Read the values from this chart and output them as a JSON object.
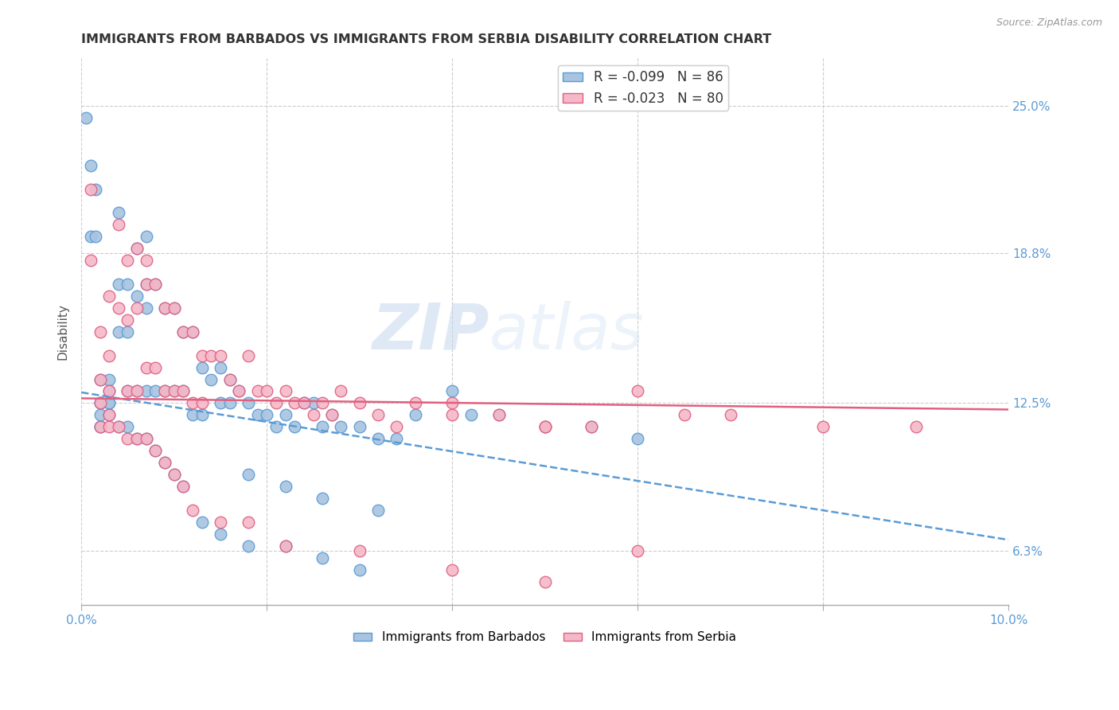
{
  "title": "IMMIGRANTS FROM BARBADOS VS IMMIGRANTS FROM SERBIA DISABILITY CORRELATION CHART",
  "source": "Source: ZipAtlas.com",
  "ylabel": "Disability",
  "xlim": [
    0.0,
    0.1
  ],
  "ylim": [
    0.04,
    0.27
  ],
  "xticks": [
    0.0,
    0.02,
    0.04,
    0.06,
    0.08,
    0.1
  ],
  "yticks": [
    0.063,
    0.125,
    0.188,
    0.25
  ],
  "yticklabels": [
    "6.3%",
    "12.5%",
    "18.8%",
    "25.0%"
  ],
  "watermark_zip": "ZIP",
  "watermark_atlas": "atlas",
  "barbados_color": "#a8c4e0",
  "barbados_edge": "#5b9bd5",
  "serbia_color": "#f4b8c8",
  "serbia_edge": "#e06080",
  "barbados_R": -0.099,
  "barbados_N": 86,
  "serbia_R": -0.023,
  "serbia_N": 80,
  "barbados_line_intercept": 0.1295,
  "barbados_line_slope": -0.62,
  "serbia_line_intercept": 0.127,
  "serbia_line_slope": -0.047,
  "background_color": "#ffffff",
  "grid_color": "#cccccc",
  "title_color": "#333333",
  "axis_color": "#5b9bd5",
  "barbados_x": [
    0.0005,
    0.001,
    0.001,
    0.0015,
    0.0015,
    0.002,
    0.002,
    0.002,
    0.002,
    0.002,
    0.003,
    0.003,
    0.003,
    0.003,
    0.004,
    0.004,
    0.004,
    0.005,
    0.005,
    0.005,
    0.006,
    0.006,
    0.006,
    0.007,
    0.007,
    0.007,
    0.007,
    0.008,
    0.008,
    0.009,
    0.009,
    0.01,
    0.01,
    0.011,
    0.011,
    0.012,
    0.012,
    0.013,
    0.013,
    0.014,
    0.015,
    0.015,
    0.016,
    0.016,
    0.017,
    0.018,
    0.019,
    0.02,
    0.021,
    0.022,
    0.023,
    0.024,
    0.025,
    0.026,
    0.027,
    0.028,
    0.03,
    0.032,
    0.034,
    0.036,
    0.04,
    0.042,
    0.045,
    0.05,
    0.055,
    0.06,
    0.002,
    0.003,
    0.004,
    0.005,
    0.006,
    0.007,
    0.008,
    0.009,
    0.01,
    0.011,
    0.013,
    0.015,
    0.018,
    0.022,
    0.026,
    0.03,
    0.018,
    0.022,
    0.026,
    0.032
  ],
  "barbados_y": [
    0.245,
    0.225,
    0.195,
    0.215,
    0.195,
    0.135,
    0.125,
    0.125,
    0.12,
    0.115,
    0.135,
    0.13,
    0.125,
    0.12,
    0.205,
    0.175,
    0.155,
    0.175,
    0.155,
    0.13,
    0.19,
    0.17,
    0.13,
    0.195,
    0.175,
    0.165,
    0.13,
    0.175,
    0.13,
    0.165,
    0.13,
    0.165,
    0.13,
    0.155,
    0.13,
    0.155,
    0.12,
    0.14,
    0.12,
    0.135,
    0.14,
    0.125,
    0.135,
    0.125,
    0.13,
    0.125,
    0.12,
    0.12,
    0.115,
    0.12,
    0.115,
    0.125,
    0.125,
    0.115,
    0.12,
    0.115,
    0.115,
    0.11,
    0.11,
    0.12,
    0.13,
    0.12,
    0.12,
    0.115,
    0.115,
    0.11,
    0.115,
    0.125,
    0.115,
    0.115,
    0.11,
    0.11,
    0.105,
    0.1,
    0.095,
    0.09,
    0.075,
    0.07,
    0.065,
    0.065,
    0.06,
    0.055,
    0.095,
    0.09,
    0.085,
    0.08
  ],
  "serbia_x": [
    0.001,
    0.001,
    0.002,
    0.002,
    0.002,
    0.002,
    0.003,
    0.003,
    0.003,
    0.003,
    0.004,
    0.004,
    0.005,
    0.005,
    0.005,
    0.006,
    0.006,
    0.006,
    0.007,
    0.007,
    0.007,
    0.008,
    0.008,
    0.009,
    0.009,
    0.01,
    0.01,
    0.011,
    0.011,
    0.012,
    0.012,
    0.013,
    0.013,
    0.014,
    0.015,
    0.016,
    0.017,
    0.018,
    0.019,
    0.02,
    0.021,
    0.022,
    0.023,
    0.024,
    0.025,
    0.026,
    0.027,
    0.028,
    0.03,
    0.032,
    0.034,
    0.036,
    0.04,
    0.045,
    0.05,
    0.055,
    0.04,
    0.05,
    0.06,
    0.065,
    0.07,
    0.08,
    0.09,
    0.003,
    0.004,
    0.005,
    0.006,
    0.007,
    0.008,
    0.009,
    0.01,
    0.011,
    0.012,
    0.015,
    0.018,
    0.022,
    0.03,
    0.04,
    0.05,
    0.06
  ],
  "serbia_y": [
    0.215,
    0.185,
    0.155,
    0.135,
    0.125,
    0.115,
    0.17,
    0.145,
    0.13,
    0.12,
    0.2,
    0.165,
    0.185,
    0.16,
    0.13,
    0.19,
    0.165,
    0.13,
    0.185,
    0.175,
    0.14,
    0.175,
    0.14,
    0.165,
    0.13,
    0.165,
    0.13,
    0.155,
    0.13,
    0.155,
    0.125,
    0.145,
    0.125,
    0.145,
    0.145,
    0.135,
    0.13,
    0.145,
    0.13,
    0.13,
    0.125,
    0.13,
    0.125,
    0.125,
    0.12,
    0.125,
    0.12,
    0.13,
    0.125,
    0.12,
    0.115,
    0.125,
    0.12,
    0.12,
    0.115,
    0.115,
    0.125,
    0.115,
    0.13,
    0.12,
    0.12,
    0.115,
    0.115,
    0.115,
    0.115,
    0.11,
    0.11,
    0.11,
    0.105,
    0.1,
    0.095,
    0.09,
    0.08,
    0.075,
    0.075,
    0.065,
    0.063,
    0.055,
    0.05,
    0.063
  ]
}
